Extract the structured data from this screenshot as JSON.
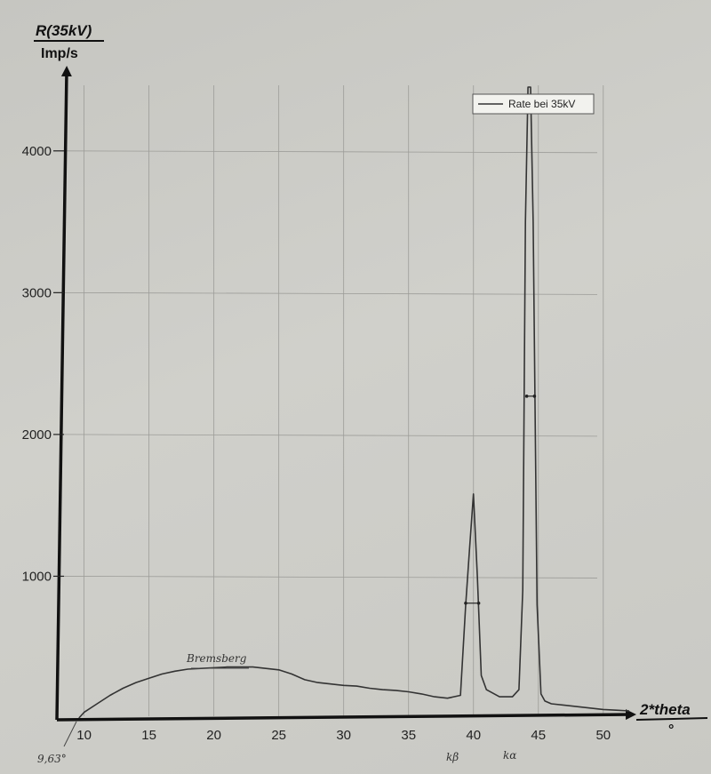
{
  "chart_data": {
    "type": "line",
    "xlabel": "2*theta",
    "xunit": "°",
    "ylabel": "R(35kV)",
    "yunit": "Imp/s",
    "xlim": [
      9,
      52
    ],
    "ylim": [
      0,
      4450
    ],
    "x_ticks": [
      10,
      15,
      20,
      25,
      30,
      35,
      40,
      45,
      50
    ],
    "y_ticks": [
      1000,
      2000,
      3000,
      4000
    ],
    "grid": true,
    "legend_position": "top-right",
    "series": [
      {
        "name": "Rate bei 35kV",
        "color": "#333333",
        "x": [
          9.6,
          10,
          11,
          12,
          13,
          14,
          15,
          16,
          17,
          18,
          19,
          20,
          21,
          22,
          23,
          24,
          25,
          26,
          27,
          28,
          29,
          30,
          31,
          32,
          33,
          34,
          35,
          36,
          37,
          38,
          39,
          39.4,
          39.7,
          40.0,
          40.3,
          40.6,
          41,
          42,
          43,
          43.5,
          43.8,
          44.0,
          44.2,
          44.4,
          44.6,
          44.9,
          45.2,
          45.5,
          46,
          47,
          48,
          49,
          50,
          51,
          52
        ],
        "y": [
          0,
          40,
          100,
          160,
          210,
          250,
          280,
          310,
          330,
          345,
          350,
          355,
          360,
          360,
          360,
          350,
          340,
          310,
          270,
          250,
          240,
          230,
          225,
          210,
          200,
          195,
          185,
          170,
          150,
          140,
          160,
          800,
          1200,
          1580,
          1000,
          300,
          200,
          150,
          150,
          200,
          900,
          3500,
          4450,
          4450,
          3500,
          800,
          170,
          120,
          100,
          90,
          80,
          70,
          60,
          55,
          50
        ]
      }
    ],
    "markers": [
      {
        "x1": 39.4,
        "x2": 40.4,
        "y": 810
      },
      {
        "x1": 44.1,
        "x2": 44.7,
        "y": 2270
      }
    ],
    "annotations": {
      "start": "9,63°",
      "bremsberg": "Bremsberg",
      "k_beta": "kβ",
      "k_alpha": "kα"
    }
  }
}
